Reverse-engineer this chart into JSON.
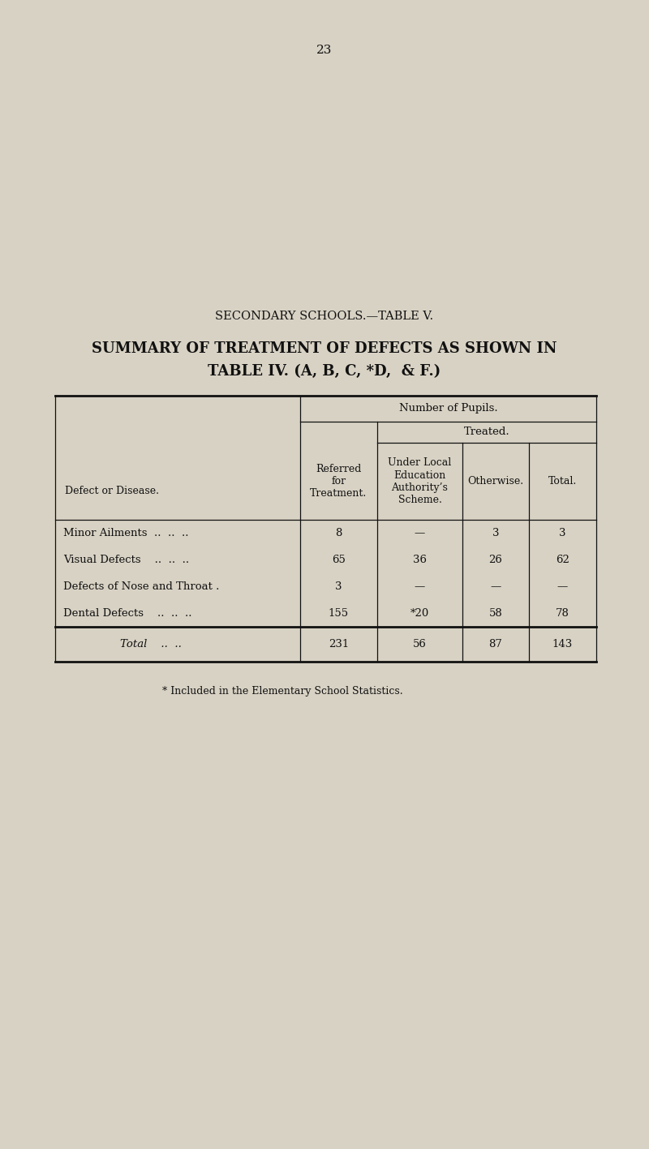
{
  "page_number": "23",
  "section_title": "SECONDARY SCHOOLS.—TABLE V.",
  "main_title_line1": "SUMMARY OF TREATMENT OF DEFECTS AS SHOWN IN",
  "main_title_line2": "TABLE IV. (A, B, C, *D,  & F.)",
  "col_header_top": "Number of Pupils.",
  "col_header_treated": "Treated.",
  "rows": [
    [
      "Minor Ailments  ..  ..  ..",
      "8",
      "—",
      "3",
      "3"
    ],
    [
      "Visual Defects    ..  ..  ..",
      "65",
      "36",
      "26",
      "62"
    ],
    [
      "Defects of Nose and Throat .",
      "3",
      "—",
      "—",
      "—"
    ],
    [
      "Dental Defects    ..  ..  ..",
      "155",
      "*20",
      "58",
      "78"
    ]
  ],
  "total_row": [
    "Total    ..  ..",
    "231",
    "56",
    "87",
    "143"
  ],
  "footnote": "* Included in the Elementary School Statistics.",
  "bg_color": "#d8d2c4",
  "text_color": "#111111",
  "line_color": "#111111",
  "fig_width": 8.0,
  "fig_height": 14.17,
  "dpi": 100
}
